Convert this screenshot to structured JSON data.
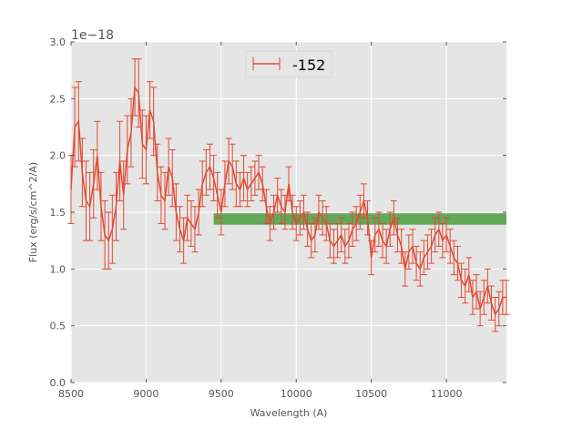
{
  "chart_data": {
    "type": "line",
    "title": "",
    "xlabel": "Wavelength (A)",
    "ylabel": "Flux (erg/s/cm^2/A)",
    "y_offset_label": "1e−18",
    "xlim": [
      8500,
      11400
    ],
    "ylim": [
      0.0,
      3.0
    ],
    "y_scale_exponent": -18,
    "x_ticks": [
      8500,
      9000,
      9500,
      10000,
      10500,
      11000
    ],
    "x_tick_labels": [
      "8500",
      "9000",
      "9500",
      "10000",
      "10500",
      "11000"
    ],
    "y_ticks": [
      0.0,
      0.5,
      1.0,
      1.5,
      2.0,
      2.5,
      3.0
    ],
    "y_tick_labels": [
      "0.0",
      "0.5",
      "1.0",
      "1.5",
      "2.0",
      "2.5",
      "3.0"
    ],
    "grid": true,
    "legend_position": "top-center",
    "colors": {
      "series": "#e24a33",
      "band": "#4a9e3f",
      "plot_background": "#e5e5e5",
      "grid": "#ffffff"
    },
    "band": {
      "x_start": 9450,
      "x_end": 11400,
      "y_low": 1.39,
      "y_high": 1.49
    },
    "series": [
      {
        "name": "-152",
        "x": [
          8500,
          8525,
          8550,
          8575,
          8600,
          8625,
          8650,
          8675,
          8700,
          8725,
          8750,
          8775,
          8800,
          8825,
          8850,
          8875,
          8900,
          8925,
          8950,
          8975,
          9000,
          9025,
          9050,
          9075,
          9100,
          9125,
          9150,
          9175,
          9200,
          9225,
          9250,
          9275,
          9300,
          9325,
          9350,
          9375,
          9400,
          9425,
          9450,
          9475,
          9500,
          9525,
          9550,
          9575,
          9600,
          9625,
          9650,
          9675,
          9700,
          9725,
          9750,
          9775,
          9800,
          9825,
          9850,
          9875,
          9900,
          9925,
          9950,
          9975,
          10000,
          10025,
          10050,
          10075,
          10100,
          10125,
          10150,
          10175,
          10200,
          10225,
          10250,
          10275,
          10300,
          10325,
          10350,
          10375,
          10400,
          10425,
          10450,
          10475,
          10500,
          10525,
          10550,
          10575,
          10600,
          10625,
          10650,
          10675,
          10700,
          10725,
          10750,
          10775,
          10800,
          10825,
          10850,
          10875,
          10900,
          10925,
          10950,
          10975,
          11000,
          11025,
          11050,
          11075,
          11100,
          11125,
          11150,
          11175,
          11200,
          11225,
          11250,
          11275,
          11300,
          11325,
          11350,
          11375,
          11400
        ],
        "y": [
          1.7,
          2.25,
          2.3,
          1.85,
          1.6,
          1.55,
          1.75,
          2.0,
          1.55,
          1.3,
          1.25,
          1.35,
          1.55,
          1.95,
          1.65,
          2.05,
          2.2,
          2.6,
          2.55,
          2.1,
          2.05,
          2.4,
          2.3,
          1.85,
          1.65,
          1.6,
          1.9,
          1.8,
          1.5,
          1.35,
          1.25,
          1.45,
          1.4,
          1.35,
          1.5,
          1.75,
          1.85,
          1.9,
          1.8,
          1.65,
          1.5,
          1.75,
          1.95,
          1.9,
          1.75,
          1.7,
          1.8,
          1.7,
          1.75,
          1.8,
          1.85,
          1.75,
          1.55,
          1.4,
          1.5,
          1.65,
          1.55,
          1.5,
          1.75,
          1.5,
          1.4,
          1.45,
          1.5,
          1.35,
          1.25,
          1.3,
          1.5,
          1.45,
          1.4,
          1.25,
          1.2,
          1.25,
          1.3,
          1.2,
          1.25,
          1.35,
          1.4,
          1.5,
          1.6,
          1.45,
          1.1,
          1.3,
          1.35,
          1.25,
          1.2,
          1.35,
          1.45,
          1.3,
          1.2,
          1.0,
          1.15,
          1.2,
          1.05,
          1.0,
          1.1,
          1.15,
          1.2,
          1.3,
          1.35,
          1.25,
          1.3,
          1.2,
          1.1,
          1.05,
          0.9,
          0.85,
          0.95,
          0.75,
          0.8,
          0.65,
          0.75,
          0.85,
          0.7,
          0.6,
          0.65,
          0.75,
          0.75
        ],
        "yerr": [
          0.3,
          0.35,
          0.35,
          0.3,
          0.35,
          0.3,
          0.3,
          0.3,
          0.3,
          0.3,
          0.25,
          0.3,
          0.3,
          0.35,
          0.3,
          0.3,
          0.3,
          0.25,
          0.3,
          0.3,
          0.3,
          0.25,
          0.3,
          0.25,
          0.25,
          0.25,
          0.25,
          0.25,
          0.25,
          0.2,
          0.2,
          0.2,
          0.2,
          0.2,
          0.2,
          0.2,
          0.2,
          0.2,
          0.2,
          0.2,
          0.2,
          0.2,
          0.2,
          0.2,
          0.2,
          0.15,
          0.2,
          0.15,
          0.15,
          0.15,
          0.15,
          0.15,
          0.15,
          0.15,
          0.15,
          0.15,
          0.15,
          0.15,
          0.15,
          0.15,
          0.15,
          0.15,
          0.15,
          0.15,
          0.15,
          0.15,
          0.15,
          0.15,
          0.15,
          0.15,
          0.15,
          0.15,
          0.15,
          0.15,
          0.15,
          0.15,
          0.15,
          0.15,
          0.15,
          0.15,
          0.15,
          0.15,
          0.15,
          0.15,
          0.15,
          0.15,
          0.15,
          0.15,
          0.15,
          0.15,
          0.15,
          0.15,
          0.15,
          0.15,
          0.15,
          0.15,
          0.15,
          0.15,
          0.15,
          0.15,
          0.15,
          0.15,
          0.15,
          0.15,
          0.15,
          0.15,
          0.15,
          0.15,
          0.15,
          0.15,
          0.15,
          0.15,
          0.15,
          0.15,
          0.15,
          0.15,
          0.15
        ]
      }
    ]
  }
}
